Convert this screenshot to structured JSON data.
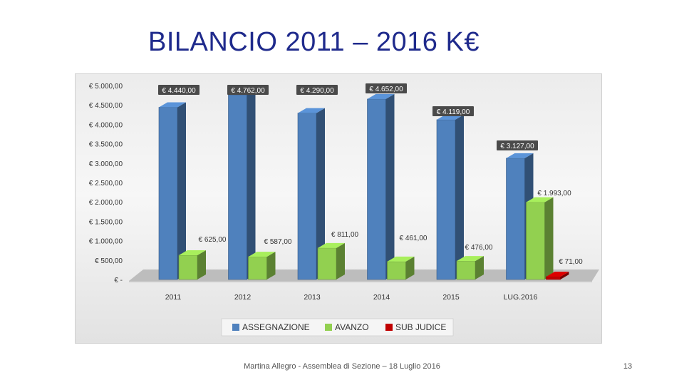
{
  "slide": {
    "title": "BILANCIO 2011 – 2016    K€",
    "footer": "Martina Allegro - Assemblea di Sezione – 18 Luglio 2016",
    "page_number": "13"
  },
  "chart_data": {
    "type": "bar",
    "categories": [
      "2011",
      "2012",
      "2013",
      "2014",
      "2015",
      "LUG.2016"
    ],
    "series": [
      {
        "name": "ASSEGNAZIONE",
        "color": "#4f81bd",
        "values": [
          4440,
          4762,
          4290,
          4652,
          4119,
          3127
        ],
        "labels": [
          "€ 4.440,00",
          "€ 4.762,00",
          "€ 4.290,00",
          "€ 4.652,00",
          "€ 4.119,00",
          "€ 3.127,00"
        ]
      },
      {
        "name": "AVANZO",
        "color": "#92d050",
        "values": [
          625,
          587,
          811,
          461,
          476,
          1993
        ],
        "labels": [
          "€ 625,00",
          "€ 587,00",
          "€ 811,00",
          "€ 461,00",
          "€ 476,00",
          "€ 1.993,00"
        ]
      },
      {
        "name": "SUB JUDICE",
        "color": "#c00000",
        "values": [
          null,
          null,
          null,
          null,
          null,
          71
        ],
        "labels": [
          null,
          null,
          null,
          null,
          null,
          "€ 71,00"
        ]
      }
    ],
    "y_ticks": [
      0,
      500,
      1000,
      1500,
      2000,
      2500,
      3000,
      3500,
      4000,
      4500,
      5000
    ],
    "y_tick_labels": [
      "€ -",
      "€ 500,00",
      "€ 1.000,00",
      "€ 1.500,00",
      "€ 2.000,00",
      "€ 2.500,00",
      "€ 3.000,00",
      "€ 3.500,00",
      "€ 4.000,00",
      "€ 4.500,00",
      "€ 5.000,00"
    ],
    "ylim": [
      0,
      5000
    ],
    "grid": false,
    "legend_position": "bottom",
    "style": "3d"
  }
}
